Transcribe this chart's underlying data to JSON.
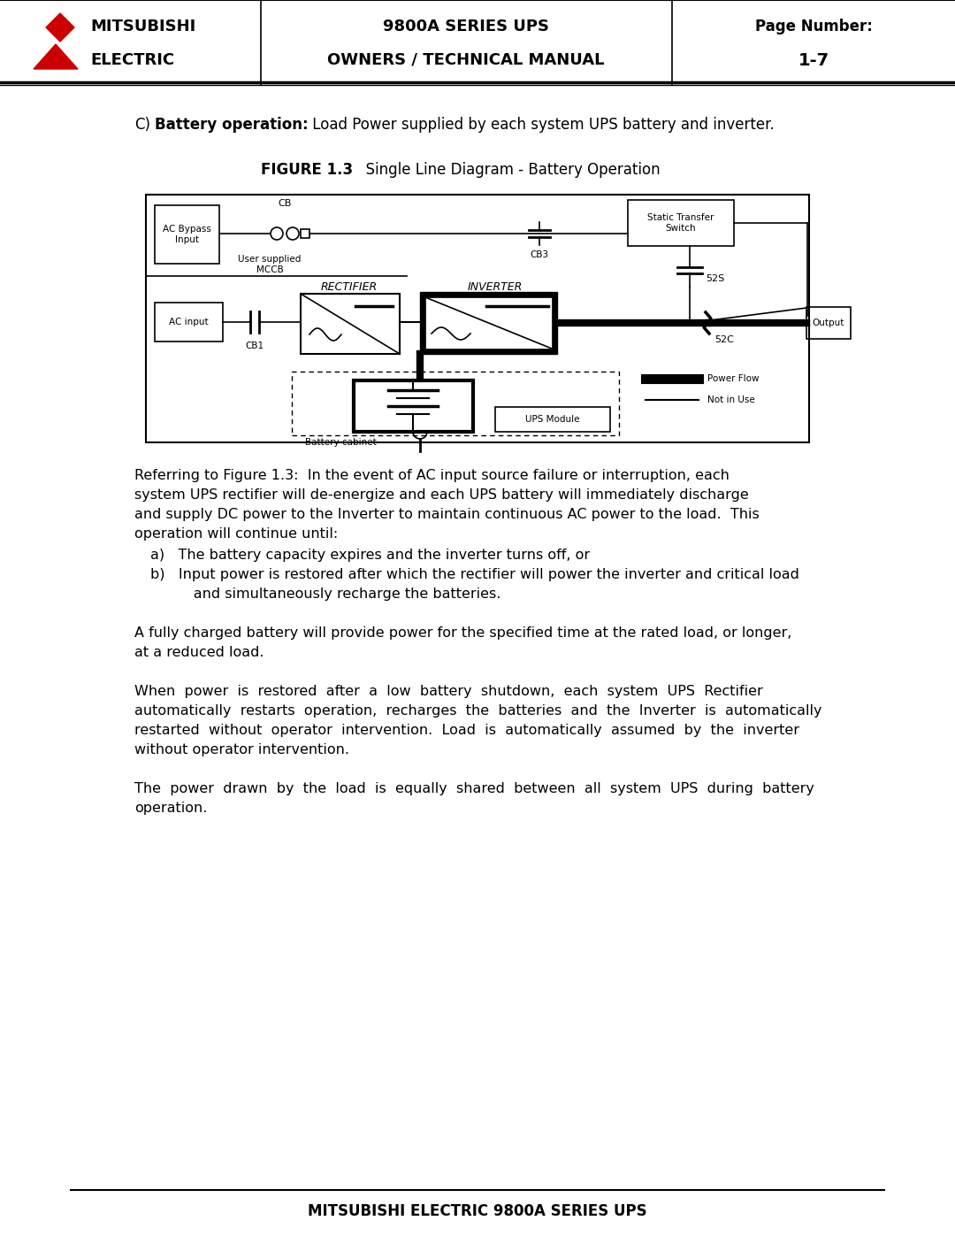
{
  "page_title_left1": "MITSUBISHI",
  "page_title_left2": "ELECTRIC",
  "page_title_center1": "9800A SERIES UPS",
  "page_title_center2": "OWNERS / TECHNICAL MANUAL",
  "page_number_label": "Page Number:",
  "page_number": "1-7",
  "footer_text": "MITSUBISHI ELECTRIC 9800A SERIES UPS",
  "section_label": "C)",
  "section_bold": "Battery operation:",
  "section_text": " Load Power supplied by each system UPS battery and inverter.",
  "figure_label": "FIGURE 1.3",
  "figure_title": "   Single Line Diagram - Battery Operation",
  "para1_lines": [
    "Referring to Figure 1.3:  In the event of AC input source failure or interruption, each",
    "system UPS rectifier will de-energize and each UPS battery will immediately discharge",
    "and supply DC power to the Inverter to maintain continuous AC power to the load.  This",
    "operation will continue until:"
  ],
  "bullet_a": "a)   The battery capacity expires and the inverter turns off, or",
  "bullet_b1": "b)   Input power is restored after which the rectifier will power the inverter and critical load",
  "bullet_b2": "      and simultaneously recharge the batteries.",
  "para2_lines": [
    "A fully charged battery will provide power for the specified time at the rated load, or longer,",
    "at a reduced load."
  ],
  "para3_lines": [
    "When  power  is  restored  after  a  low  battery  shutdown,  each  system  UPS  Rectifier",
    "automatically  restarts  operation,  recharges  the  batteries  and  the  Inverter  is  automatically",
    "restarted  without  operator  intervention.  Load  is  automatically  assumed  by  the  inverter",
    "without operator intervention."
  ],
  "para4_lines": [
    "The  power  drawn  by  the  load  is  equally  shared  between  all  system  UPS  during  battery",
    "operation."
  ],
  "bg_color": "#ffffff",
  "text_color": "#000000",
  "red_color": "#cc0000"
}
